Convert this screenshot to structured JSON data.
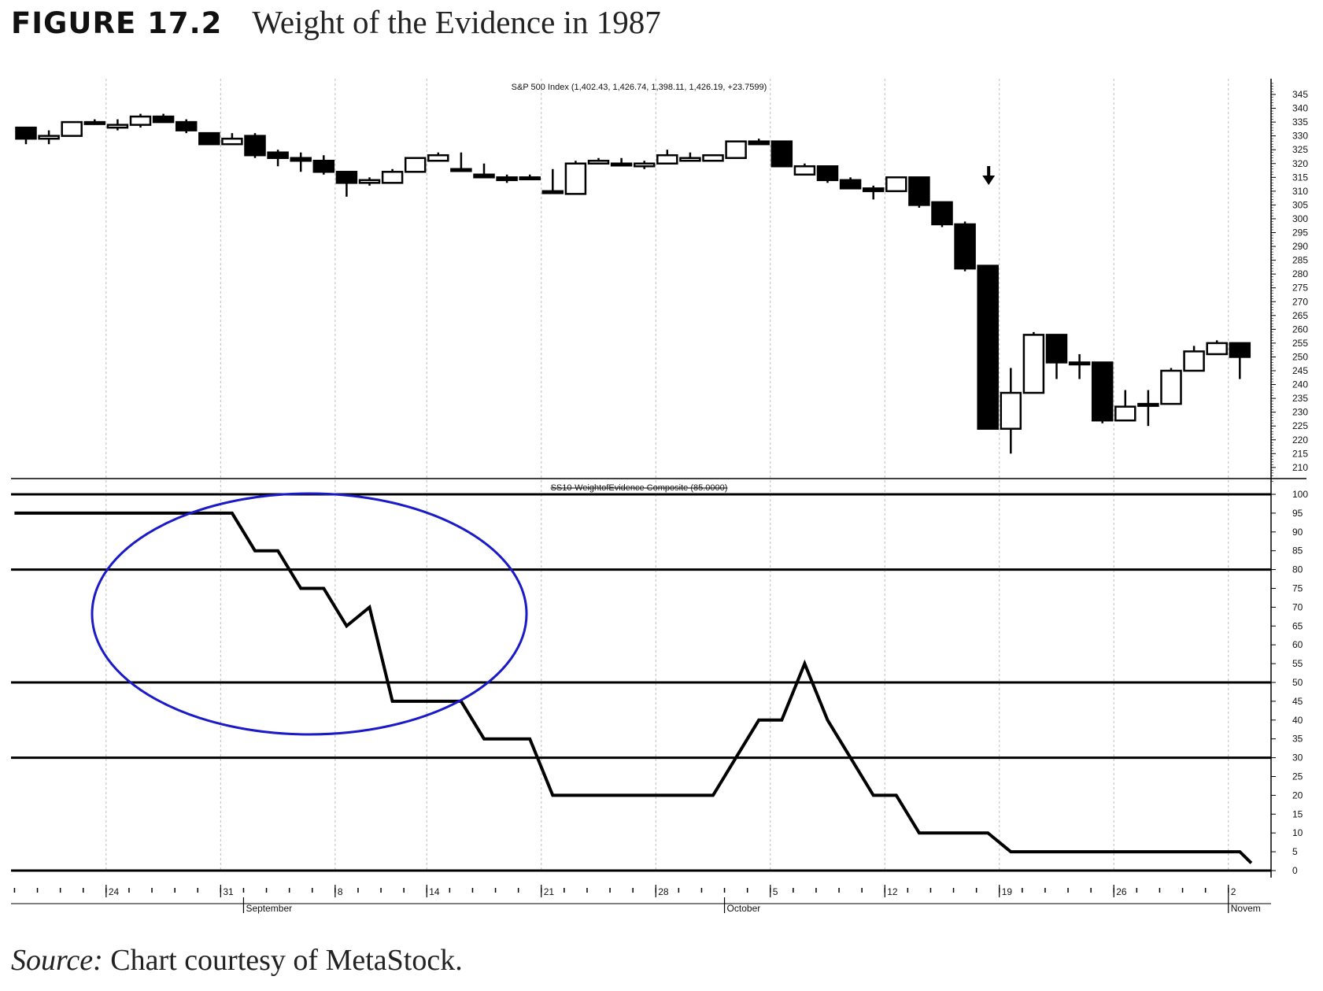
{
  "figure": {
    "number": "FIGURE 17.2",
    "title": "Weight of the Evidence in 1987",
    "source_label": "Source:",
    "source_text": " Chart courtesy of MetaStock."
  },
  "colors": {
    "ink": "#000000",
    "grid": "#bdbdbd",
    "ellipse": "#1a1ac8"
  },
  "chart_data": [
    {
      "type": "candlestick",
      "title": "S&P 500 Index (1,402.43, 1,426.74, 1,398.11, 1,426.19, +23.7599)",
      "ylim": [
        205,
        349
      ],
      "y_ticks": [
        345,
        340,
        335,
        330,
        325,
        320,
        315,
        310,
        305,
        300,
        295,
        290,
        285,
        280,
        275,
        270,
        265,
        260,
        255,
        250,
        245,
        240,
        235,
        230,
        225,
        220,
        215,
        210
      ],
      "candles": [
        {
          "d": 0,
          "o": 333,
          "h": 333,
          "l": 327,
          "c": 329
        },
        {
          "d": 1,
          "o": 329,
          "h": 332,
          "l": 327,
          "c": 330
        },
        {
          "d": 2,
          "o": 330,
          "h": 335,
          "l": 330,
          "c": 335
        },
        {
          "d": 3,
          "o": 335,
          "h": 336,
          "l": 334,
          "c": 335
        },
        {
          "d": 4,
          "o": 333,
          "h": 336,
          "l": 332,
          "c": 334
        },
        {
          "d": 5,
          "o": 334,
          "h": 338,
          "l": 333,
          "c": 337
        },
        {
          "d": 6,
          "o": 337,
          "h": 338,
          "l": 335,
          "c": 335
        },
        {
          "d": 7,
          "o": 335,
          "h": 336,
          "l": 331,
          "c": 332
        },
        {
          "d": 8,
          "o": 331,
          "h": 331,
          "l": 327,
          "c": 327
        },
        {
          "d": 9,
          "o": 327,
          "h": 331,
          "l": 327,
          "c": 329
        },
        {
          "d": 10,
          "o": 330,
          "h": 331,
          "l": 322,
          "c": 323
        },
        {
          "d": 11,
          "o": 324,
          "h": 325,
          "l": 319,
          "c": 322
        },
        {
          "d": 12,
          "o": 322,
          "h": 324,
          "l": 317,
          "c": 321
        },
        {
          "d": 13,
          "o": 321,
          "h": 323,
          "l": 316,
          "c": 317
        },
        {
          "d": 14,
          "o": 317,
          "h": 317,
          "l": 308,
          "c": 313
        },
        {
          "d": 15,
          "o": 313,
          "h": 315,
          "l": 312,
          "c": 314
        },
        {
          "d": 16,
          "o": 313,
          "h": 318,
          "l": 313,
          "c": 317
        },
        {
          "d": 17,
          "o": 317,
          "h": 322,
          "l": 317,
          "c": 322
        },
        {
          "d": 18,
          "o": 321,
          "h": 324,
          "l": 321,
          "c": 323
        },
        {
          "d": 19,
          "o": 318,
          "h": 324,
          "l": 317,
          "c": 318
        },
        {
          "d": 20,
          "o": 316,
          "h": 320,
          "l": 315,
          "c": 315
        },
        {
          "d": 21,
          "o": 315,
          "h": 316,
          "l": 313,
          "c": 314
        },
        {
          "d": 22,
          "o": 315,
          "h": 316,
          "l": 315,
          "c": 315
        },
        {
          "d": 23,
          "o": 310,
          "h": 318,
          "l": 310,
          "c": 310
        },
        {
          "d": 24,
          "o": 309,
          "h": 321,
          "l": 309,
          "c": 320
        },
        {
          "d": 25,
          "o": 320,
          "h": 322,
          "l": 320,
          "c": 321
        },
        {
          "d": 26,
          "o": 320,
          "h": 322,
          "l": 319,
          "c": 320
        },
        {
          "d": 27,
          "o": 319,
          "h": 321,
          "l": 318,
          "c": 320
        },
        {
          "d": 28,
          "o": 320,
          "h": 325,
          "l": 320,
          "c": 323
        },
        {
          "d": 29,
          "o": 321,
          "h": 324,
          "l": 321,
          "c": 322
        },
        {
          "d": 30,
          "o": 321,
          "h": 323,
          "l": 321,
          "c": 323
        },
        {
          "d": 31,
          "o": 322,
          "h": 328,
          "l": 322,
          "c": 328
        },
        {
          "d": 32,
          "o": 328,
          "h": 329,
          "l": 327,
          "c": 327
        },
        {
          "d": 33,
          "o": 328,
          "h": 328,
          "l": 319,
          "c": 319
        },
        {
          "d": 34,
          "o": 316,
          "h": 320,
          "l": 316,
          "c": 319
        },
        {
          "d": 35,
          "o": 319,
          "h": 319,
          "l": 313,
          "c": 314
        },
        {
          "d": 36,
          "o": 314,
          "h": 315,
          "l": 311,
          "c": 311
        },
        {
          "d": 37,
          "o": 311,
          "h": 312,
          "l": 307,
          "c": 310
        },
        {
          "d": 38,
          "o": 310,
          "h": 315,
          "l": 310,
          "c": 315
        },
        {
          "d": 39,
          "o": 315,
          "h": 315,
          "l": 304,
          "c": 305
        },
        {
          "d": 40,
          "o": 306,
          "h": 306,
          "l": 297,
          "c": 298
        },
        {
          "d": 41,
          "o": 298,
          "h": 299,
          "l": 281,
          "c": 282
        },
        {
          "d": 42,
          "o": 283,
          "h": 283,
          "l": 224,
          "c": 224
        },
        {
          "d": 43,
          "o": 224,
          "h": 246,
          "l": 215,
          "c": 237
        },
        {
          "d": 44,
          "o": 237,
          "h": 259,
          "l": 237,
          "c": 258
        },
        {
          "d": 45,
          "o": 258,
          "h": 258,
          "l": 242,
          "c": 248
        },
        {
          "d": 46,
          "o": 248,
          "h": 251,
          "l": 242,
          "c": 248
        },
        {
          "d": 47,
          "o": 248,
          "h": 248,
          "l": 226,
          "c": 227
        },
        {
          "d": 48,
          "o": 227,
          "h": 238,
          "l": 227,
          "c": 232
        },
        {
          "d": 49,
          "o": 233,
          "h": 238,
          "l": 225,
          "c": 233
        },
        {
          "d": 50,
          "o": 233,
          "h": 246,
          "l": 233,
          "c": 245
        },
        {
          "d": 51,
          "o": 245,
          "h": 254,
          "l": 245,
          "c": 252
        },
        {
          "d": 52,
          "o": 251,
          "h": 256,
          "l": 251,
          "c": 255
        },
        {
          "d": 53,
          "o": 255,
          "h": 255,
          "l": 242,
          "c": 250
        }
      ]
    },
    {
      "type": "line",
      "title": "SS10-WeightofEvidence Composite (85.0000)",
      "ylim": [
        0,
        100
      ],
      "y_ticks": [
        100,
        95,
        90,
        85,
        80,
        75,
        70,
        65,
        60,
        55,
        50,
        45,
        40,
        35,
        30,
        25,
        20,
        15,
        10,
        5,
        0
      ],
      "reference_lines": [
        100,
        80,
        50,
        30,
        0
      ],
      "x": [
        -0.5,
        9,
        10,
        11,
        12,
        13,
        14,
        15,
        16,
        17,
        18,
        19,
        20,
        21,
        22,
        23,
        24,
        25,
        26,
        27,
        28,
        29,
        30,
        31,
        32,
        33,
        34,
        35,
        36,
        37,
        38,
        39,
        40,
        41,
        42,
        43,
        44,
        45,
        46,
        47,
        48,
        49,
        50,
        51,
        52,
        53,
        53.5
      ],
      "y": [
        95,
        95,
        85,
        85,
        75,
        75,
        65,
        70,
        45,
        45,
        45,
        45,
        35,
        35,
        35,
        20,
        20,
        20,
        20,
        20,
        20,
        20,
        20,
        30,
        40,
        40,
        55,
        40,
        30,
        20,
        20,
        10,
        10,
        10,
        10,
        5,
        5,
        5,
        5,
        5,
        5,
        5,
        5,
        5,
        5,
        5,
        2
      ],
      "annotations": [
        "ellipse around the decline from 95 to 45",
        "down arrow above October 19 candle"
      ]
    }
  ],
  "x_axis": {
    "days_total": 54,
    "date_labels": [
      {
        "day": 4,
        "label": "24"
      },
      {
        "day": 9,
        "label": "31"
      },
      {
        "day": 14,
        "label": "8"
      },
      {
        "day": 18,
        "label": "14"
      },
      {
        "day": 23,
        "label": "21"
      },
      {
        "day": 28,
        "label": "28"
      },
      {
        "day": 33,
        "label": "5"
      },
      {
        "day": 38,
        "label": "12"
      },
      {
        "day": 43,
        "label": "19"
      },
      {
        "day": 48,
        "label": "26"
      },
      {
        "day": 53,
        "label": "2"
      }
    ],
    "month_labels": [
      {
        "day": 10,
        "label": "September"
      },
      {
        "day": 31,
        "label": "October"
      },
      {
        "day": 53,
        "label": "Novem"
      }
    ]
  }
}
